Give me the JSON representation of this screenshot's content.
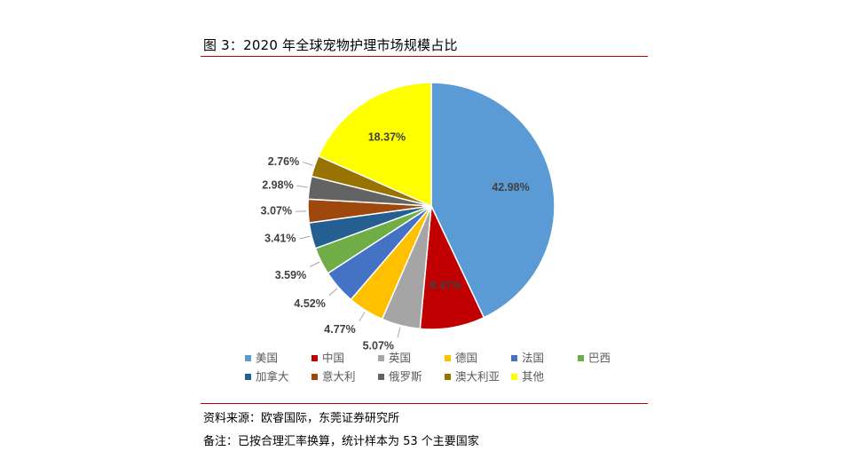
{
  "figure": {
    "title": "图 3：2020 年全球宠物护理市场规模占比",
    "source": "资料来源：欧睿国际，东莞证券研究所",
    "remark": "备注：已按合理汇率换算，统计样本为 53 个主要国家"
  },
  "chart_data": {
    "type": "pie",
    "title": "",
    "legend_position": "bottom",
    "slices": [
      {
        "label": "美国",
        "value": 42.98,
        "value_label": "42.98%",
        "color": "#5b9bd5"
      },
      {
        "label": "中国",
        "value": 8.47,
        "value_label": "8.47%",
        "color": "#c00000"
      },
      {
        "label": "英国",
        "value": 5.07,
        "value_label": "5.07%",
        "color": "#a5a5a5"
      },
      {
        "label": "德国",
        "value": 4.77,
        "value_label": "4.77%",
        "color": "#ffc000"
      },
      {
        "label": "法国",
        "value": 4.52,
        "value_label": "4.52%",
        "color": "#4472c4"
      },
      {
        "label": "巴西",
        "value": 3.59,
        "value_label": "3.59%",
        "color": "#70ad47"
      },
      {
        "label": "加拿大",
        "value": 3.41,
        "value_label": "3.41%",
        "color": "#255e91"
      },
      {
        "label": "意大利",
        "value": 3.07,
        "value_label": "3.07%",
        "color": "#9e480e"
      },
      {
        "label": "俄罗斯",
        "value": 2.98,
        "value_label": "2.98%",
        "color": "#636363"
      },
      {
        "label": "澳大利亚",
        "value": 2.76,
        "value_label": "2.76%",
        "color": "#997300"
      },
      {
        "label": "其他",
        "value": 18.37,
        "value_label": "18.37%",
        "color": "#ffff00"
      }
    ]
  }
}
